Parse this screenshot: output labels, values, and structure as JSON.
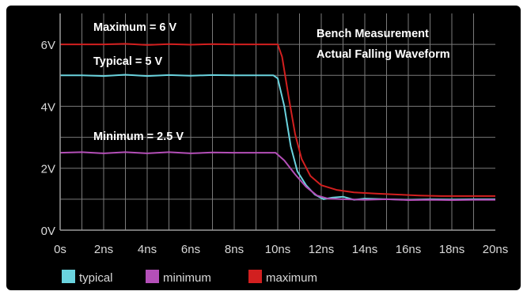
{
  "chart_data": {
    "type": "line",
    "title": "",
    "xlabel": "",
    "ylabel": "",
    "xlim": [
      0,
      20
    ],
    "ylim": [
      0,
      7
    ],
    "grid": true,
    "x_ticks": [
      "0s",
      "2ns",
      "4ns",
      "6ns",
      "8ns",
      "10ns",
      "12ns",
      "14ns",
      "16ns",
      "18ns",
      "20ns"
    ],
    "y_ticks": [
      {
        "value": 0,
        "label": "0V"
      },
      {
        "value": 2,
        "label": "2V"
      },
      {
        "value": 4,
        "label": "4V"
      },
      {
        "value": 6,
        "label": "6V"
      }
    ],
    "annotations": {
      "maximum": "Maximum = 6 V",
      "typical": "Typical = 5 V",
      "minimum": "Minimum = 2.5 V",
      "bench_line1": "Bench Measurement",
      "bench_line2": "Actual Falling Waveform"
    },
    "legend_position": "bottom",
    "series": [
      {
        "name": "typical",
        "color": "#6ad3de",
        "points": [
          [
            0,
            5.0
          ],
          [
            1,
            5.0
          ],
          [
            2,
            4.98
          ],
          [
            3,
            5.02
          ],
          [
            4,
            4.98
          ],
          [
            5,
            5.01
          ],
          [
            6,
            4.99
          ],
          [
            7,
            5.01
          ],
          [
            8,
            5.0
          ],
          [
            9,
            5.0
          ],
          [
            9.8,
            5.0
          ],
          [
            10.0,
            4.9
          ],
          [
            10.3,
            4.0
          ],
          [
            10.6,
            2.7
          ],
          [
            10.9,
            1.9
          ],
          [
            11.3,
            1.45
          ],
          [
            11.7,
            1.15
          ],
          [
            12.1,
            1.0
          ],
          [
            12.5,
            1.05
          ],
          [
            13.0,
            1.08
          ],
          [
            13.5,
            0.98
          ],
          [
            14,
            1.02
          ],
          [
            15,
            1.0
          ],
          [
            16,
            0.98
          ],
          [
            17,
            1.0
          ],
          [
            18,
            0.99
          ],
          [
            19,
            1.0
          ],
          [
            20,
            1.0
          ]
        ]
      },
      {
        "name": "minimum",
        "color": "#b44fb8",
        "points": [
          [
            0,
            2.5
          ],
          [
            1,
            2.52
          ],
          [
            2,
            2.48
          ],
          [
            3,
            2.52
          ],
          [
            4,
            2.48
          ],
          [
            5,
            2.52
          ],
          [
            6,
            2.48
          ],
          [
            7,
            2.51
          ],
          [
            8,
            2.5
          ],
          [
            9,
            2.5
          ],
          [
            9.9,
            2.5
          ],
          [
            10.3,
            2.25
          ],
          [
            10.8,
            1.8
          ],
          [
            11.3,
            1.4
          ],
          [
            11.8,
            1.12
          ],
          [
            12.3,
            1.02
          ],
          [
            13,
            1.0
          ],
          [
            14,
            0.98
          ],
          [
            15,
            1.0
          ],
          [
            16,
            0.97
          ],
          [
            17,
            0.98
          ],
          [
            18,
            0.97
          ],
          [
            19,
            0.98
          ],
          [
            20,
            0.98
          ]
        ]
      },
      {
        "name": "maximum",
        "color": "#d21f1f",
        "points": [
          [
            0,
            6.0
          ],
          [
            1,
            6.0
          ],
          [
            2,
            6.0
          ],
          [
            3,
            6.02
          ],
          [
            4,
            5.98
          ],
          [
            5,
            6.01
          ],
          [
            6,
            5.99
          ],
          [
            7,
            6.01
          ],
          [
            8,
            6.0
          ],
          [
            9,
            6.0
          ],
          [
            10.0,
            6.0
          ],
          [
            10.2,
            5.6
          ],
          [
            10.5,
            4.3
          ],
          [
            10.8,
            3.1
          ],
          [
            11.1,
            2.3
          ],
          [
            11.5,
            1.75
          ],
          [
            12.0,
            1.45
          ],
          [
            12.7,
            1.3
          ],
          [
            13.5,
            1.22
          ],
          [
            14.5,
            1.18
          ],
          [
            15.5,
            1.15
          ],
          [
            16.5,
            1.12
          ],
          [
            17.5,
            1.1
          ],
          [
            18.5,
            1.1
          ],
          [
            20,
            1.1
          ]
        ]
      }
    ]
  }
}
